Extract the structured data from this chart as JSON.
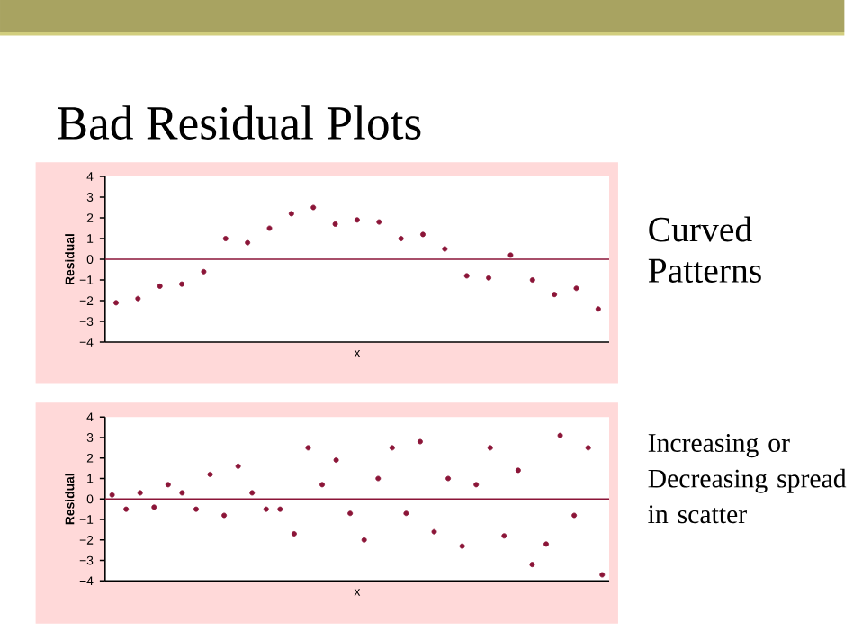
{
  "chart_data": [
    {
      "type": "scatter",
      "title": "Bad Residual Plots",
      "xlabel": "x",
      "ylabel": "Residual",
      "annotations": [
        "Curved Patterns"
      ],
      "categories": [
        null,
        null,
        null,
        null,
        null,
        null,
        null,
        null,
        null,
        null,
        null,
        null,
        null,
        null,
        null,
        null,
        null,
        null,
        null,
        null,
        null,
        null,
        null
      ],
      "values": [
        -2.1,
        -1.9,
        -1.3,
        -1.2,
        -0.6,
        1.0,
        0.8,
        1.5,
        2.2,
        2.5,
        1.7,
        1.9,
        1.8,
        1.0,
        1.2,
        0.5,
        -0.8,
        -0.9,
        0.2,
        -1.0,
        -1.7,
        -1.4,
        -2.4
      ],
      "color": "#8b1538",
      "marker": "circle",
      "ylim": [
        -4,
        4
      ],
      "yticks": [
        {
          "value": -4,
          "label": "−4"
        },
        {
          "value": -3,
          "label": "−3"
        },
        {
          "value": -2,
          "label": "−2"
        },
        {
          "value": -1,
          "label": "−1"
        },
        {
          "value": 0,
          "label": "0"
        },
        {
          "value": 1,
          "label": "1"
        },
        {
          "value": 2,
          "label": "2"
        },
        {
          "value": 3,
          "label": "3"
        },
        {
          "value": 4,
          "label": "4"
        }
      ],
      "ref_lines": [
        {
          "axis": "y",
          "value": 0,
          "color": "#8b1538"
        }
      ]
    },
    {
      "type": "scatter",
      "xlabel": "x",
      "ylabel": "Residual",
      "annotations": [
        "Increasing or Decreasing spread in scatter"
      ],
      "categories": [
        null,
        null,
        null,
        null,
        null,
        null,
        null,
        null,
        null,
        null,
        null,
        null,
        null,
        null,
        null,
        null,
        null,
        null,
        null,
        null,
        null,
        null,
        null,
        null,
        null,
        null,
        null,
        null,
        null,
        null,
        null,
        null,
        null,
        null,
        null,
        null
      ],
      "values": [
        0.2,
        -0.5,
        0.3,
        -0.4,
        0.7,
        0.3,
        -0.5,
        1.2,
        -0.8,
        1.6,
        0.3,
        -0.5,
        -0.5,
        -1.7,
        2.5,
        0.7,
        1.9,
        -0.7,
        -2.0,
        1.0,
        2.5,
        -0.7,
        2.8,
        -1.6,
        1.0,
        -2.3,
        0.7,
        2.5,
        -1.8,
        1.4,
        -3.2,
        -2.2,
        3.1,
        -0.8,
        2.5,
        -3.7
      ],
      "color": "#8b1538",
      "marker": "circle",
      "ylim": [
        -4,
        4
      ],
      "yticks": [
        {
          "value": -4,
          "label": "−4"
        },
        {
          "value": -3,
          "label": "−3"
        },
        {
          "value": -2,
          "label": "−2"
        },
        {
          "value": -1,
          "label": "−1"
        },
        {
          "value": 0,
          "label": "0"
        },
        {
          "value": 1,
          "label": "1"
        },
        {
          "value": 2,
          "label": "2"
        },
        {
          "value": 3,
          "label": "3"
        },
        {
          "value": 4,
          "label": "4"
        }
      ],
      "ref_lines": [
        {
          "axis": "y",
          "value": 0,
          "color": "#8b1538"
        }
      ]
    }
  ]
}
